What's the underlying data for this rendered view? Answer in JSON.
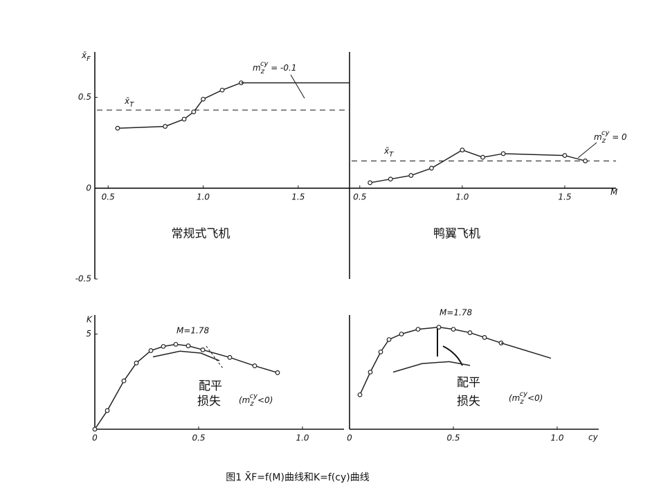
{
  "caption": "图1 X̄F=f(M)曲线和K=f(cy)曲线",
  "chart_data": [
    {
      "type": "line",
      "label": "常规式飞机",
      "y_label": {
        "base": "x̄",
        "sub": "F"
      },
      "xlim": [
        0.43,
        1.77
      ],
      "ylim": [
        -0.5,
        0.75
      ],
      "xticks": [
        0.5,
        {
          "value": 1,
          "label": "1.0"
        },
        1.5
      ],
      "yticks": [
        -0.5,
        0,
        0.5
      ],
      "series": [
        {
          "color": "#222",
          "markers": true,
          "x": [
            0.55,
            0.8,
            0.9,
            0.95,
            1.0,
            1.1,
            1.2
          ],
          "values": [
            0.33,
            0.34,
            0.38,
            0.42,
            0.49,
            0.54,
            0.58
          ]
        },
        {
          "color": "#222",
          "markers": false,
          "x": [
            1.2,
            1.77
          ],
          "values": [
            0.58,
            0.58
          ]
        }
      ],
      "reference_line": {
        "value": 0.43,
        "label": {
          "base": "x̄",
          "sub": "T"
        }
      },
      "annotations": [
        {
          "base": "m",
          "sub": "z",
          "sup": "cy",
          "text": " = -0.1"
        }
      ]
    },
    {
      "type": "line",
      "label": "鸭翼飞机",
      "x_label": "M",
      "xlim": [
        0.45,
        1.75
      ],
      "ylim": [
        -0.5,
        0.75
      ],
      "xticks": [
        0.5,
        {
          "value": 1,
          "label": "1.0"
        },
        1.5
      ],
      "yticks": [],
      "series": [
        {
          "color": "#222",
          "markers": true,
          "x": [
            0.55,
            0.65,
            0.75,
            0.85,
            1.0,
            1.1,
            1.2,
            1.5,
            1.6
          ],
          "values": [
            0.03,
            0.05,
            0.07,
            0.11,
            0.21,
            0.17,
            0.19,
            0.18,
            0.15
          ]
        }
      ],
      "reference_line": {
        "value": 0.15,
        "label": {
          "base": "x̄",
          "sub": "T"
        }
      },
      "annotations": [
        {
          "base": "m",
          "sub": "z",
          "sup": "cy",
          "text": " = 0"
        }
      ]
    },
    {
      "type": "line",
      "y_label": "K",
      "xlim": [
        0,
        1.2
      ],
      "ylim": [
        0,
        6
      ],
      "xticks": [
        0,
        0.5,
        {
          "value": 1,
          "label": "1.0"
        }
      ],
      "yticks": [
        5
      ],
      "series": [
        {
          "color": "#222",
          "markers": true,
          "x": [
            0,
            0.06,
            0.14,
            0.2,
            0.27,
            0.33,
            0.39,
            0.45,
            0.52,
            0.65,
            0.77,
            0.88
          ],
          "values": [
            0,
            0.98,
            2.54,
            3.48,
            4.13,
            4.35,
            4.46,
            4.38,
            4.17,
            3.77,
            3.33,
            2.97
          ]
        },
        {
          "color": "#222",
          "markers": false,
          "x": [
            0.28,
            0.41,
            0.51,
            0.6
          ],
          "values": [
            3.8,
            4.1,
            4.0,
            3.6
          ]
        }
      ],
      "annotations": [
        "M=1.78",
        "配平",
        "损失",
        {
          "base": "(m",
          "sub": "z",
          "sup": "cy",
          "text": "<0)"
        }
      ]
    },
    {
      "type": "line",
      "x_label": "cy",
      "xlim": [
        0,
        1.2
      ],
      "ylim": [
        0,
        6
      ],
      "xticks": [
        0,
        0.5,
        {
          "value": 1,
          "label": "1.0"
        }
      ],
      "yticks": [],
      "series": [
        {
          "color": "#222",
          "markers": true,
          "x": [
            0.05,
            0.1,
            0.15,
            0.19,
            0.25,
            0.33,
            0.43,
            0.5,
            0.58,
            0.65,
            0.73
          ],
          "values": [
            1.81,
            3.0,
            4.06,
            4.71,
            5.0,
            5.25,
            5.36,
            5.25,
            5.07,
            4.82,
            4.53
          ]
        },
        {
          "color": "#222",
          "markers": false,
          "x": [
            0.73,
            0.97
          ],
          "values": [
            4.53,
            3.73
          ]
        },
        {
          "color": "#222",
          "markers": false,
          "x": [
            0.21,
            0.35,
            0.48,
            0.58
          ],
          "values": [
            3.0,
            3.45,
            3.55,
            3.35
          ]
        }
      ],
      "annotations": [
        "M=1.78",
        "配平",
        "损失",
        {
          "base": "(m",
          "sub": "z",
          "sup": "cy",
          "text": "<0)"
        }
      ]
    }
  ]
}
